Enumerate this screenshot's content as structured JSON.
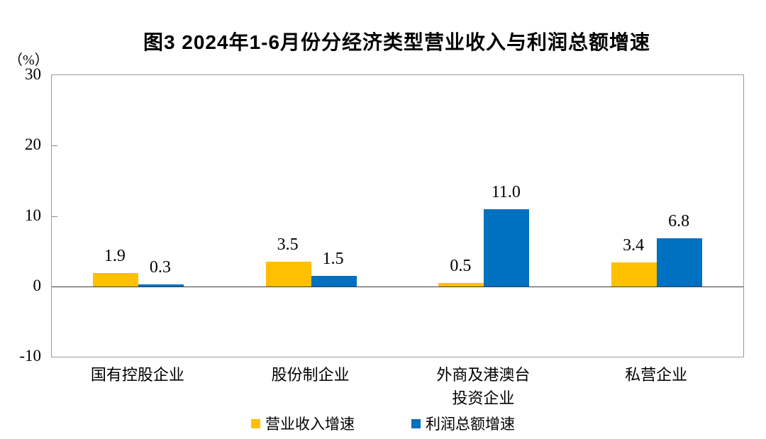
{
  "title": "图3 2024年1-6月份分经济类型营业收入与利润总额增速",
  "unit_label": "（%）",
  "chart_data": {
    "type": "bar",
    "title": "图3 2024年1-6月份分经济类型营业收入与利润总额增速",
    "unit": "（%）",
    "categories": [
      [
        "国有控股企业"
      ],
      [
        "股份制企业"
      ],
      [
        "外商及港澳台",
        "投资企业"
      ],
      [
        "私营企业"
      ]
    ],
    "series": [
      {
        "name": "营业收入增速",
        "color": "#FFC000",
        "values": [
          1.9,
          3.5,
          0.5,
          3.4
        ],
        "labels": [
          "1.9",
          "3.5",
          "0.5",
          "3.4"
        ]
      },
      {
        "name": "利润总额增速",
        "color": "#0070C0",
        "values": [
          0.3,
          1.5,
          11.0,
          6.8
        ],
        "labels": [
          "0.3",
          "1.5",
          "11.0",
          "6.8"
        ]
      }
    ],
    "yticks": [
      30,
      20,
      10,
      0,
      -10
    ],
    "ylim": [
      -10,
      30
    ],
    "grid": false,
    "legend_position": "bottom",
    "xlabel": "",
    "ylabel": "（%）"
  }
}
